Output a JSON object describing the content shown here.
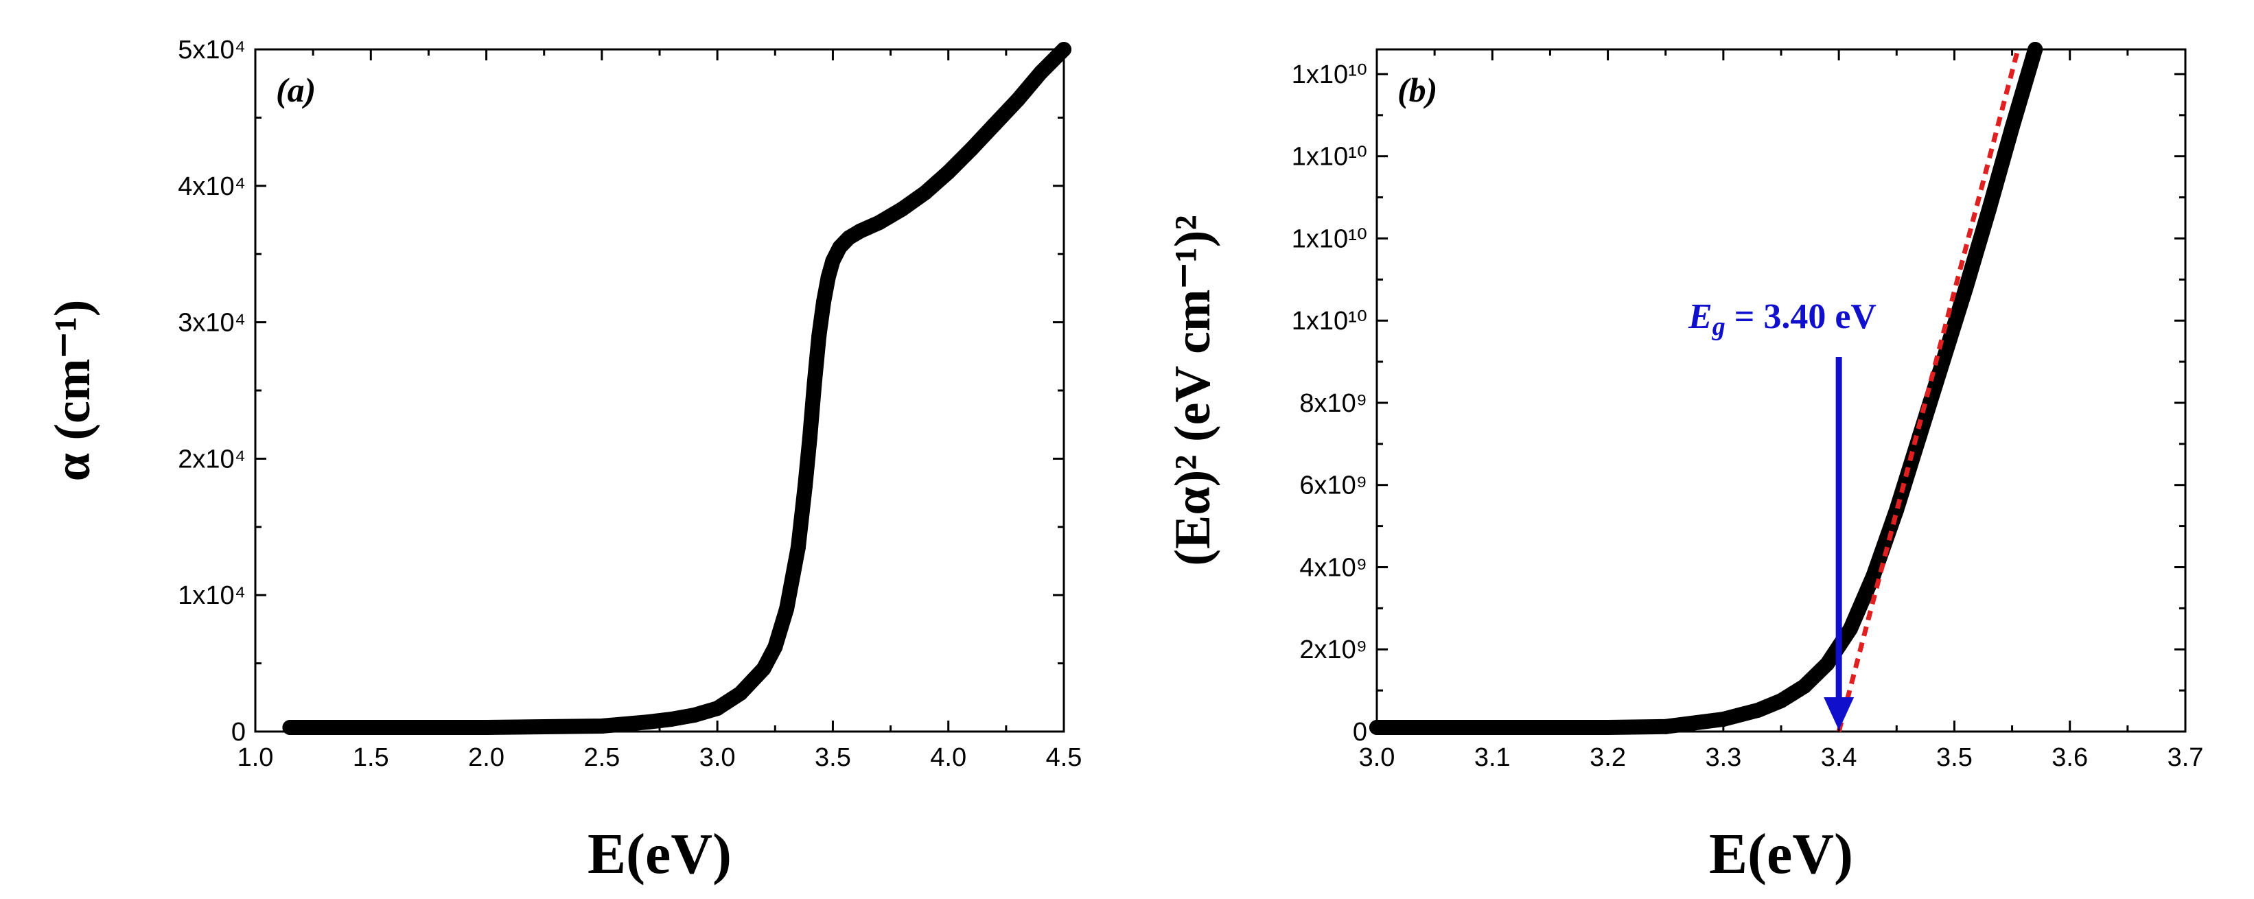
{
  "chart_data": [
    {
      "type": "scatter",
      "panel_label": "(a)",
      "xlabel": "E(eV)",
      "ylabel": "α (cm⁻¹)",
      "xlim": [
        1.0,
        4.5
      ],
      "ylim": [
        0,
        50000
      ],
      "x_ticks": [
        "1.0",
        "1.5",
        "2.0",
        "2.5",
        "3.0",
        "3.5",
        "4.0",
        "4.5"
      ],
      "y_ticks": [
        "0",
        "1x10⁴",
        "2x10⁴",
        "3x10⁴",
        "4x10⁴",
        "5x10⁴"
      ],
      "grid": false,
      "series": [
        {
          "color": "#000000",
          "x": [
            1.15,
            1.5,
            2.0,
            2.5,
            2.7,
            2.8,
            2.9,
            3.0,
            3.1,
            3.2,
            3.25,
            3.3,
            3.35,
            3.38,
            3.4,
            3.42,
            3.44,
            3.46,
            3.48,
            3.5,
            3.53,
            3.57,
            3.62,
            3.7,
            3.8,
            3.9,
            4.0,
            4.1,
            4.2,
            4.3,
            4.4,
            4.5
          ],
          "y": [
            0,
            50,
            150,
            400,
            700,
            900,
            1200,
            1700,
            2800,
            4600,
            6200,
            9000,
            13500,
            18000,
            21500,
            25500,
            29000,
            31500,
            33300,
            34500,
            35500,
            36200,
            36700,
            37300,
            38300,
            39500,
            41000,
            42700,
            44500,
            46300,
            48300,
            50000
          ]
        }
      ]
    },
    {
      "type": "scatter",
      "panel_label": "(b)",
      "xlabel": "E(eV)",
      "ylabel": "(Eα)² (eV cm⁻¹)²",
      "xlim": [
        3.0,
        3.7
      ],
      "ylim": [
        0,
        16600000000
      ],
      "x_ticks": [
        "3.0",
        "3.1",
        "3.2",
        "3.3",
        "3.4",
        "3.5",
        "3.6",
        "3.7"
      ],
      "y_ticks": [
        "0",
        "2x10⁹",
        "4x10⁹",
        "6x10⁹",
        "8x10⁹",
        "1x10¹⁰",
        "1x10¹⁰",
        "1x10¹⁰",
        "1x10¹⁰"
      ],
      "grid": false,
      "series": [
        {
          "color": "#000000",
          "x": [
            3.0,
            3.1,
            3.2,
            3.25,
            3.3,
            3.33,
            3.35,
            3.37,
            3.39,
            3.41,
            3.43,
            3.45,
            3.47,
            3.49,
            3.51,
            3.53,
            3.55,
            3.57
          ],
          "y": [
            0,
            10000000,
            50000000,
            120000000,
            300000000,
            520000000,
            750000000,
            1100000000,
            1650000000,
            2500000000,
            3800000000,
            5400000000,
            7200000000,
            9000000000,
            10800000000,
            12700000000,
            14700000000,
            16600000000
          ]
        },
        {
          "color": "#e02020",
          "x": [
            3.4,
            3.555
          ],
          "y": [
            0,
            16600000000
          ]
        }
      ],
      "annotation": {
        "text_symbol": "E",
        "text_subscript": "g",
        "text_value": " = 3.40 eV",
        "color": "#1010cc",
        "x": 3.4
      }
    }
  ]
}
